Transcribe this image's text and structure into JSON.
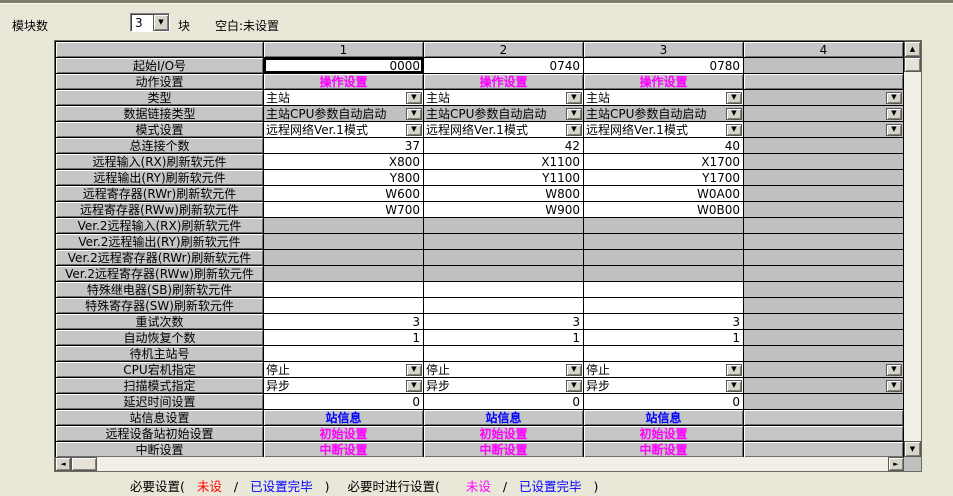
{
  "toolbar": {
    "module_count_label": "模块数",
    "module_count_value": "3",
    "unit_label": "块",
    "blank_hint": "空白:未设置"
  },
  "table": {
    "column_headers": [
      "1",
      "2",
      "3",
      "4"
    ],
    "rows": [
      {
        "label": "起始I/O号",
        "type": "input",
        "values": [
          "0000",
          "0740",
          "0780"
        ],
        "selected_col": 0
      },
      {
        "label": "动作设置",
        "type": "button",
        "link": "操作设置",
        "link_color": "magenta"
      },
      {
        "label": "类型",
        "type": "dropdown",
        "values": [
          "主站",
          "主站",
          "主站"
        ],
        "bg": "white"
      },
      {
        "label": "数据链接类型",
        "type": "dropdown",
        "values": [
          "主站CPU参数自动启动",
          "主站CPU参数自动启动",
          "主站CPU参数自动启动"
        ],
        "bg": "gray"
      },
      {
        "label": "模式设置",
        "type": "dropdown",
        "values": [
          "远程网络Ver.1模式",
          "远程网络Ver.1模式",
          "远程网络Ver.1模式"
        ],
        "bg": "white"
      },
      {
        "label": "总连接个数",
        "type": "value",
        "values": [
          "37",
          "42",
          "40"
        ]
      },
      {
        "label": "远程输入(RX)刷新软元件",
        "type": "value",
        "values": [
          "X800",
          "X1100",
          "X1700"
        ]
      },
      {
        "label": "远程输出(RY)刷新软元件",
        "type": "value",
        "values": [
          "Y800",
          "Y1100",
          "Y1700"
        ]
      },
      {
        "label": "远程寄存器(RWr)刷新软元件",
        "type": "value",
        "values": [
          "W600",
          "W800",
          "W0A00"
        ]
      },
      {
        "label": "远程寄存器(RWw)刷新软元件",
        "type": "value",
        "values": [
          "W700",
          "W900",
          "W0B00"
        ]
      },
      {
        "label": "Ver.2远程输入(RX)刷新软元件",
        "type": "disabled"
      },
      {
        "label": "Ver.2远程输出(RY)刷新软元件",
        "type": "disabled"
      },
      {
        "label": "Ver.2远程寄存器(RWr)刷新软元件",
        "type": "disabled"
      },
      {
        "label": "Ver.2远程寄存器(RWw)刷新软元件",
        "type": "disabled"
      },
      {
        "label": "特殊继电器(SB)刷新软元件",
        "type": "value",
        "values": [
          "",
          "",
          ""
        ]
      },
      {
        "label": "特殊寄存器(SW)刷新软元件",
        "type": "value",
        "values": [
          "",
          "",
          ""
        ]
      },
      {
        "label": "重试次数",
        "type": "value",
        "values": [
          "3",
          "3",
          "3"
        ]
      },
      {
        "label": "自动恢复个数",
        "type": "value",
        "values": [
          "1",
          "1",
          "1"
        ]
      },
      {
        "label": "待机主站号",
        "type": "value",
        "values": [
          "",
          "",
          ""
        ]
      },
      {
        "label": "CPU宕机指定",
        "type": "dropdown",
        "values": [
          "停止",
          "停止",
          "停止"
        ],
        "bg": "white"
      },
      {
        "label": "扫描模式指定",
        "type": "dropdown",
        "values": [
          "异步",
          "异步",
          "异步"
        ],
        "bg": "white"
      },
      {
        "label": "延迟时间设置",
        "type": "value",
        "values": [
          "0",
          "0",
          "0"
        ]
      },
      {
        "label": "站信息设置",
        "type": "button",
        "link": "站信息",
        "link_color": "blue"
      },
      {
        "label": "远程设备站初始设置",
        "type": "button",
        "link": "初始设置",
        "link_color": "magenta"
      },
      {
        "label": "中断设置",
        "type": "button",
        "link": "中断设置",
        "link_color": "magenta"
      }
    ]
  },
  "legend": {
    "required_label": "必要设置(",
    "required_unset": "未设",
    "slash1": "/",
    "required_done": "已设置完毕",
    "close1": ")",
    "optional_label": "必要时进行设置(",
    "optional_unset": "未设",
    "slash2": "/",
    "optional_done": "已设置完毕",
    "close2": ")"
  },
  "colors": {
    "link_magenta": "#FF00FF",
    "link_blue": "#0000FF",
    "unset_red": "#FF0000",
    "cell_gray": "#C0C0C0",
    "background": "#E9E7D8"
  }
}
